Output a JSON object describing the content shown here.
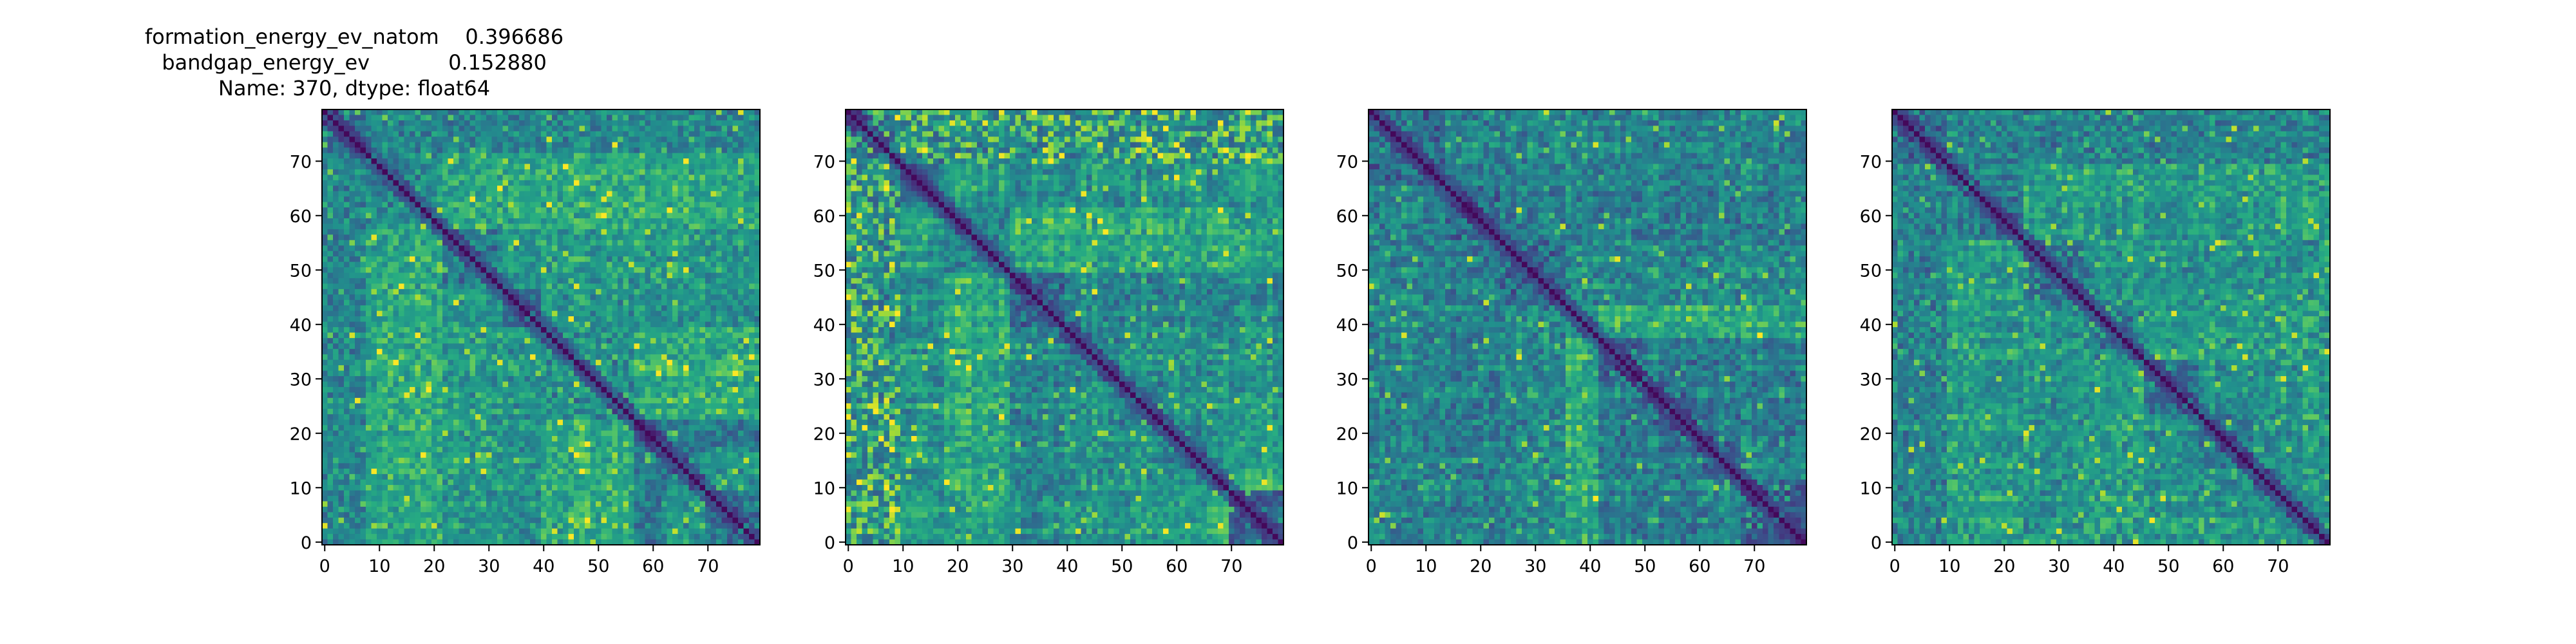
{
  "figure": {
    "title_lines": [
      "formation_energy_ev_natom    0.396686",
      "bandgap_energy_ev            0.152880",
      "Name: 370, dtype: float64"
    ]
  },
  "chart_data": [
    {
      "type": "heatmap",
      "title": "formation_energy_ev_natom    0.396686\nbandgap_energy_ev            0.152880\nName: 370, dtype: float64",
      "rows": 80,
      "cols": 80,
      "xticks": [
        0,
        10,
        20,
        30,
        40,
        50,
        60,
        70
      ],
      "yticks": [
        0,
        10,
        20,
        30,
        40,
        50,
        60,
        70
      ],
      "xlim": [
        -0.5,
        79.5
      ],
      "ylim": [
        79.5,
        -0.5
      ],
      "colormap": "viridis",
      "diagonal": "minimum (dark)",
      "block_boundaries": [
        8,
        22,
        33,
        40,
        57,
        62,
        70
      ]
    },
    {
      "type": "heatmap",
      "title": "",
      "rows": 80,
      "cols": 80,
      "xticks": [
        0,
        10,
        20,
        30,
        40,
        50,
        60,
        70
      ],
      "yticks": [
        0,
        10,
        20,
        30,
        40,
        50,
        60,
        70
      ],
      "xlim": [
        -0.5,
        79.5
      ],
      "ylim": [
        79.5,
        -0.5
      ],
      "colormap": "viridis",
      "diagonal": "minimum (dark)",
      "block_boundaries": [
        9,
        18,
        30,
        40,
        50,
        58,
        70
      ]
    },
    {
      "type": "heatmap",
      "title": "",
      "rows": 80,
      "cols": 80,
      "xticks": [
        0,
        10,
        20,
        30,
        40,
        50,
        60,
        70
      ],
      "yticks": [
        0,
        10,
        20,
        30,
        40,
        50,
        60,
        70
      ],
      "xlim": [
        -0.5,
        79.5
      ],
      "ylim": [
        79.5,
        -0.5
      ],
      "colormap": "viridis",
      "diagonal": "minimum (dark)",
      "block_boundaries": [
        14,
        24,
        36,
        42,
        50,
        60,
        68
      ]
    },
    {
      "type": "heatmap",
      "title": "",
      "rows": 80,
      "cols": 80,
      "xticks": [
        0,
        10,
        20,
        30,
        40,
        50,
        60,
        70
      ],
      "yticks": [
        0,
        10,
        20,
        30,
        40,
        50,
        60,
        70
      ],
      "xlim": [
        -0.5,
        79.5
      ],
      "ylim": [
        79.5,
        -0.5
      ],
      "colormap": "viridis",
      "diagonal": "minimum (dark)",
      "block_boundaries": [
        10,
        24,
        36,
        46,
        56,
        66,
        72
      ]
    }
  ]
}
